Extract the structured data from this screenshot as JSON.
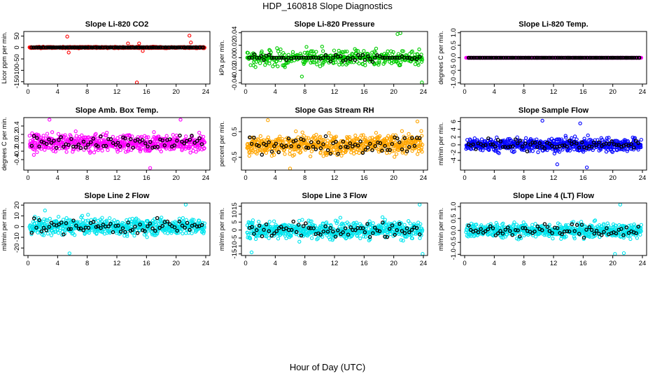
{
  "page": {
    "title": "HDP_160818  Slope Diagnostics",
    "xlabel": "Hour of Day (UTC)"
  },
  "chart_data": [
    {
      "type": "scatter",
      "title": "Slope Li-820 CO2",
      "ylabel": "Licor ppm per min.",
      "ylim": [
        -160,
        70
      ],
      "yticks": [
        -150,
        -100,
        -50,
        0,
        50
      ],
      "color": "#ff0000",
      "sd": 3,
      "outliers": [
        [
          5.3,
          48
        ],
        [
          5.5,
          -22
        ],
        [
          14.7,
          -155
        ],
        [
          15.0,
          18
        ],
        [
          15.5,
          -15
        ],
        [
          21.8,
          52
        ],
        [
          22.0,
          22
        ],
        [
          13.5,
          18
        ]
      ],
      "xlim": [
        0,
        24
      ],
      "xticks": [
        0,
        4,
        8,
        12,
        16,
        20,
        24
      ]
    },
    {
      "type": "scatter",
      "title": "Slope Li-820 Pressure",
      "ylabel": "kPa per min.",
      "ylim": [
        -0.042,
        0.042
      ],
      "yticks": [
        -0.04,
        -0.02,
        0.0,
        0.02,
        0.04
      ],
      "color": "#00cc00",
      "sd": 0.009,
      "outliers": [
        [
          20.5,
          0.038
        ],
        [
          20.9,
          0.041
        ],
        [
          23.8,
          -0.04
        ],
        [
          7.6,
          -0.03
        ]
      ],
      "xlim": [
        0,
        24
      ],
      "xticks": [
        0,
        4,
        8,
        12,
        16,
        20,
        24
      ]
    },
    {
      "type": "scatter",
      "title": "Slope Li-820 Temp.",
      "ylabel": "degrees C per min.",
      "ylim": [
        -1.05,
        1.05
      ],
      "yticks": [
        -1.0,
        -0.5,
        0.0,
        0.5,
        1.0
      ],
      "color": "#ff00ff",
      "sd": 0.0,
      "outliers": [],
      "xlim": [
        0,
        24
      ],
      "xticks": [
        0,
        4,
        8,
        12,
        16,
        20,
        24
      ]
    },
    {
      "type": "scatter",
      "title": "Slope Amb. Box Temp.",
      "ylabel": "degrees C per min.",
      "ylim": [
        -0.65,
        0.6
      ],
      "yticks": [
        -0.4,
        -0.2,
        0.0,
        0.2,
        0.4
      ],
      "color": "#ff00ff",
      "sd": 0.18,
      "outliers": [
        [
          16.5,
          -0.6
        ],
        [
          2.9,
          0.55
        ],
        [
          20.6,
          0.55
        ]
      ],
      "xlim": [
        0,
        24
      ],
      "xticks": [
        0,
        4,
        8,
        12,
        16,
        20,
        24
      ]
    },
    {
      "type": "scatter",
      "title": "Slope Gas Stream RH",
      "ylabel": "percent per min.",
      "ylim": [
        -1.0,
        1.05
      ],
      "yticks": [
        -0.5,
        0.5
      ],
      "color": "#ffa500",
      "sd": 0.35,
      "outliers": [
        [
          3.0,
          0.95
        ],
        [
          23.2,
          0.9
        ],
        [
          6.0,
          -0.95
        ]
      ],
      "xlim": [
        0,
        24
      ],
      "xticks": [
        0,
        4,
        8,
        12,
        16,
        20,
        24
      ]
    },
    {
      "type": "scatter",
      "title": "Slope Sample Flow",
      "ylabel": "ml/min per min.",
      "ylim": [
        -6.5,
        7
      ],
      "yticks": [
        -4,
        -2,
        0,
        2,
        4,
        6
      ],
      "color": "#0000ff",
      "sd": 1.6,
      "outliers": [
        [
          10.5,
          6.2
        ],
        [
          15.6,
          5.5
        ],
        [
          16.5,
          -5.8
        ],
        [
          12.5,
          -5.0
        ]
      ],
      "xlim": [
        0,
        24
      ],
      "xticks": [
        0,
        4,
        8,
        12,
        16,
        20,
        24
      ]
    },
    {
      "type": "scatter",
      "title": "Slope Line 2 Flow",
      "ylabel": "ml/min per min.",
      "ylim": [
        -27,
        22
      ],
      "yticks": [
        -20,
        -10,
        0,
        10,
        20
      ],
      "color": "#00e5ee",
      "sd": 7,
      "outliers": [
        [
          5.6,
          -25
        ],
        [
          21.3,
          21
        ],
        [
          2.3,
          15
        ]
      ],
      "xlim": [
        0,
        24
      ],
      "xticks": [
        0,
        4,
        8,
        12,
        16,
        20,
        24
      ]
    },
    {
      "type": "scatter",
      "title": "Slope Line 3 Flow",
      "ylabel": "ml/min per min.",
      "ylim": [
        -16,
        17
      ],
      "yticks": [
        -15,
        -10,
        -5,
        0,
        5,
        10,
        15
      ],
      "color": "#00e5ee",
      "sd": 5,
      "outliers": [
        [
          23.5,
          16
        ],
        [
          0.8,
          -14
        ],
        [
          23.9,
          -15
        ]
      ],
      "xlim": [
        0,
        24
      ],
      "xticks": [
        0,
        4,
        8,
        12,
        16,
        20,
        24
      ]
    },
    {
      "type": "scatter",
      "title": "Slope Line 4 (LT) Flow",
      "ylabel": "ml/min per min.",
      "ylim": [
        -1.05,
        1.15
      ],
      "yticks": [
        -1.0,
        -0.5,
        0.0,
        0.5,
        1.0
      ],
      "color": "#00e5ee",
      "sd": 0.28,
      "outliers": [
        [
          21.0,
          1.1
        ],
        [
          20.3,
          -1.0
        ],
        [
          21.5,
          -0.95
        ]
      ],
      "xlim": [
        0,
        24
      ],
      "xticks": [
        0,
        4,
        8,
        12,
        16,
        20,
        24
      ]
    }
  ]
}
